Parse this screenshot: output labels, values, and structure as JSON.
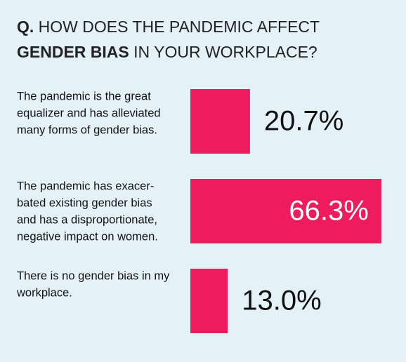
{
  "chart_data": {
    "type": "bar",
    "orientation": "horizontal",
    "title": [
      "Q.",
      "HOW DOES THE PANDEMIC AFFECT",
      "GENDER BIAS",
      "IN YOUR WORKPLACE?"
    ],
    "categories": [
      [
        "The pandemic is the great",
        "equalizer and has alleviated",
        "many forms of gender bias."
      ],
      [
        "The pandemic has exacer-",
        "bated existing gender bias",
        "and has a disproportionate,",
        "negative impact on women."
      ],
      [
        "There is no gender bias in my",
        "workplace."
      ]
    ],
    "values": [
      20.7,
      66.3,
      13.0
    ],
    "value_labels": [
      "20.7%",
      "66.3%",
      "13.0%"
    ],
    "color": "#ee1c5f"
  }
}
